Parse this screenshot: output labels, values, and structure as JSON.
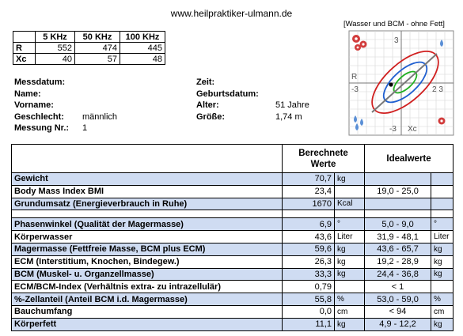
{
  "header": {
    "website": "www.heilpraktiker-ulmann.de"
  },
  "frequency_table": {
    "columns": [
      "",
      "5 KHz",
      "50 KHz",
      "100 KHz"
    ],
    "rows": [
      {
        "label": "R",
        "values": [
          "552",
          "474",
          "445"
        ]
      },
      {
        "label": "Xc",
        "values": [
          "40",
          "57",
          "48"
        ]
      }
    ]
  },
  "patient_left": [
    {
      "label": "Messdatum:",
      "value": ""
    },
    {
      "label": "Name:",
      "value": ""
    },
    {
      "label": "Vorname:",
      "value": ""
    },
    {
      "label": "Geschlecht:",
      "value": "männlich"
    },
    {
      "label": "Messung Nr.:",
      "value": "1"
    }
  ],
  "patient_right": [
    {
      "label": "Zeit:",
      "value": ""
    },
    {
      "label": "Geburtsdatum:",
      "value": ""
    },
    {
      "label": "Alter:",
      "value": "51 Jahre"
    },
    {
      "label": "Größe:",
      "value": "1,74 m"
    }
  ],
  "graph": {
    "title": "[Wasser und BCM - ohne Fett]",
    "labels": {
      "top": "3",
      "bottom": "-3",
      "left_neg": "-3",
      "right": "3",
      "r_axis": "R",
      "xc_axis": "Xc",
      "ticks_right": "2 3"
    },
    "colors": {
      "outer": "#d02020",
      "middle": "#1f5fd0",
      "inner": "#21b021",
      "axis": "#777777",
      "icon_red": "#d23c3c",
      "icon_blue": "#5a8fd6"
    }
  },
  "main_table": {
    "header": {
      "computed": "Berechnete Werte",
      "ideal": "Idealwerte"
    },
    "rows": [
      {
        "label": "Gewicht",
        "value": "70,7",
        "unit": "kg",
        "ideal": "",
        "ideal_unit": "",
        "highlight": true
      },
      {
        "label": "Body Mass Index BMI",
        "value": "23,4",
        "unit": "",
        "ideal": "19,0 - 25,0",
        "ideal_unit": "",
        "highlight": false
      },
      {
        "label": "Grundumsatz (Energieverbrauch in Ruhe)",
        "value": "1670",
        "unit": "Kcal",
        "ideal": "",
        "ideal_unit": "",
        "highlight": true
      },
      {
        "spacer": true
      },
      {
        "label": "Phasenwinkel (Qualität der Magermasse)",
        "value": "6,9",
        "unit": "°",
        "ideal": "5,0 - 9,0",
        "ideal_unit": "°",
        "highlight": true
      },
      {
        "label": "Körperwasser",
        "value": "43,6",
        "unit": "Liter",
        "ideal": "31,9 - 48,1",
        "ideal_unit": "Liter",
        "highlight": false
      },
      {
        "label": "Magermasse (Fettfreie Masse, BCM plus ECM)",
        "value": "59,6",
        "unit": "kg",
        "ideal": "43,6 - 65,7",
        "ideal_unit": "kg",
        "highlight": true
      },
      {
        "label": "ECM (Interstitium, Knochen, Bindegew.)",
        "value": "26,3",
        "unit": "kg",
        "ideal": "19,2 - 28,9",
        "ideal_unit": "kg",
        "highlight": false
      },
      {
        "label": "BCM (Muskel- u. Organzellmasse)",
        "value": "33,3",
        "unit": "kg",
        "ideal": "24,4 - 36,8",
        "ideal_unit": "kg",
        "highlight": true
      },
      {
        "label": "ECM/BCM-Index (Verhältnis extra- zu intrazellulär)",
        "value": "0,79",
        "unit": "",
        "ideal": "< 1",
        "ideal_unit": "",
        "highlight": false
      },
      {
        "label": "%-Zellanteil (Anteil BCM i.d. Magermasse)",
        "value": "55,8",
        "unit": "%",
        "ideal": "53,0 - 59,0",
        "ideal_unit": "%",
        "highlight": true
      },
      {
        "label": "Bauchumfang",
        "value": "0,0",
        "unit": "cm",
        "ideal": "< 94",
        "ideal_unit": "cm",
        "highlight": false
      },
      {
        "label": "Körperfett",
        "value": "11,1",
        "unit": "kg",
        "ideal": "4,9 - 12,2",
        "ideal_unit": "kg",
        "highlight": true
      }
    ]
  }
}
